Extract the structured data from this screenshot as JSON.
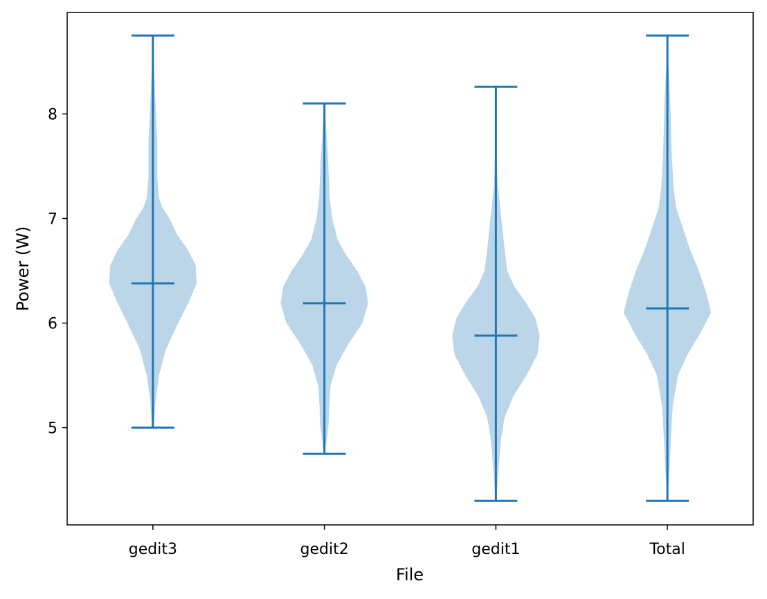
{
  "chart_data": {
    "type": "violin",
    "title": "",
    "xlabel": "File",
    "ylabel": "Power (W)",
    "categories": [
      "gedit3",
      "gedit2",
      "gedit1",
      "Total"
    ],
    "yticks": [
      "5",
      "6",
      "7",
      "8"
    ],
    "ylim": [
      4.07,
      8.97
    ],
    "grid": false,
    "color": "#1f77b4",
    "violins": [
      {
        "category": "gedit3",
        "min": 5.0,
        "max": 8.75,
        "median": 6.38,
        "profile": [
          [
            5.0,
            0.02
          ],
          [
            5.25,
            0.06
          ],
          [
            5.5,
            0.14
          ],
          [
            5.75,
            0.3
          ],
          [
            6.0,
            0.58
          ],
          [
            6.2,
            0.82
          ],
          [
            6.38,
            1.0
          ],
          [
            6.55,
            0.98
          ],
          [
            6.7,
            0.8
          ],
          [
            6.85,
            0.55
          ],
          [
            7.0,
            0.38
          ],
          [
            7.1,
            0.22
          ],
          [
            7.2,
            0.14
          ],
          [
            7.4,
            0.1
          ],
          [
            7.6,
            0.1
          ],
          [
            7.75,
            0.1
          ],
          [
            7.9,
            0.08
          ],
          [
            8.1,
            0.06
          ],
          [
            8.4,
            0.03
          ],
          [
            8.75,
            0.0
          ]
        ]
      },
      {
        "category": "gedit2",
        "min": 4.75,
        "max": 8.1,
        "median": 6.19,
        "profile": [
          [
            4.75,
            0.01
          ],
          [
            4.9,
            0.06
          ],
          [
            5.05,
            0.1
          ],
          [
            5.2,
            0.11
          ],
          [
            5.4,
            0.14
          ],
          [
            5.6,
            0.28
          ],
          [
            5.8,
            0.55
          ],
          [
            6.0,
            0.87
          ],
          [
            6.19,
            1.0
          ],
          [
            6.35,
            0.94
          ],
          [
            6.5,
            0.75
          ],
          [
            6.65,
            0.5
          ],
          [
            6.8,
            0.3
          ],
          [
            7.0,
            0.18
          ],
          [
            7.2,
            0.12
          ],
          [
            7.4,
            0.1
          ],
          [
            7.6,
            0.08
          ],
          [
            7.8,
            0.05
          ],
          [
            8.1,
            0.0
          ]
        ]
      },
      {
        "category": "gedit1",
        "min": 4.3,
        "max": 8.26,
        "median": 5.88,
        "profile": [
          [
            4.3,
            0.01
          ],
          [
            4.6,
            0.06
          ],
          [
            4.9,
            0.12
          ],
          [
            5.1,
            0.2
          ],
          [
            5.3,
            0.4
          ],
          [
            5.5,
            0.7
          ],
          [
            5.7,
            0.95
          ],
          [
            5.88,
            1.0
          ],
          [
            6.05,
            0.9
          ],
          [
            6.2,
            0.68
          ],
          [
            6.35,
            0.42
          ],
          [
            6.5,
            0.26
          ],
          [
            6.7,
            0.2
          ],
          [
            6.9,
            0.15
          ],
          [
            7.1,
            0.1
          ],
          [
            7.35,
            0.04
          ],
          [
            7.6,
            0.02
          ],
          [
            8.26,
            0.0
          ]
        ]
      },
      {
        "category": "Total",
        "min": 4.3,
        "max": 8.75,
        "median": 6.14,
        "profile": [
          [
            4.3,
            0.0
          ],
          [
            4.6,
            0.05
          ],
          [
            4.9,
            0.08
          ],
          [
            5.2,
            0.12
          ],
          [
            5.5,
            0.24
          ],
          [
            5.7,
            0.46
          ],
          [
            5.9,
            0.75
          ],
          [
            6.1,
            1.0
          ],
          [
            6.3,
            0.88
          ],
          [
            6.5,
            0.72
          ],
          [
            6.7,
            0.52
          ],
          [
            6.9,
            0.36
          ],
          [
            7.1,
            0.2
          ],
          [
            7.3,
            0.14
          ],
          [
            7.6,
            0.1
          ],
          [
            7.9,
            0.08
          ],
          [
            8.2,
            0.06
          ],
          [
            8.5,
            0.02
          ],
          [
            8.75,
            0.0
          ]
        ]
      }
    ]
  }
}
